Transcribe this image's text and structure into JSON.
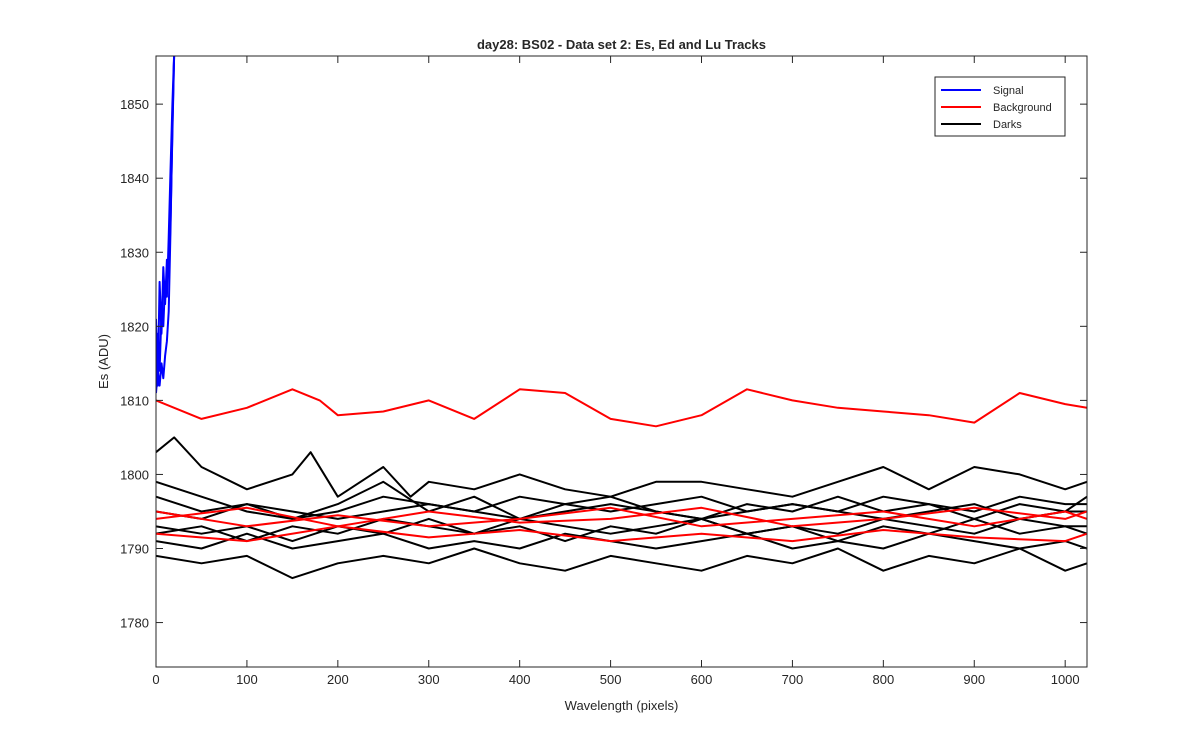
{
  "chart_data": {
    "type": "line",
    "title": "day28: BS02 - Data set 2: Es, Ed and Lu Tracks",
    "xlabel": "Wavelength (pixels)",
    "ylabel": "Es (ADU)",
    "xlim": [
      0,
      1024
    ],
    "ylim": [
      1774,
      1856.5
    ],
    "xticks": [
      0,
      100,
      200,
      300,
      400,
      500,
      600,
      700,
      800,
      900,
      1000
    ],
    "yticks": [
      1780,
      1790,
      1800,
      1810,
      1820,
      1830,
      1840,
      1850
    ],
    "grid": false,
    "legend_position": "top-right",
    "legend": [
      {
        "name": "Signal",
        "color": "#0000ff"
      },
      {
        "name": "Background",
        "color": "#ff0000"
      },
      {
        "name": "Darks",
        "color": "#000000"
      }
    ],
    "series": [
      {
        "name": "Signal",
        "color": "#0000ff",
        "x": [
          0,
          2,
          4,
          6,
          8,
          10,
          12,
          14,
          16,
          18,
          20
        ],
        "y": [
          1821,
          1812,
          1826,
          1819,
          1828,
          1823,
          1829,
          1827,
          1834,
          1846,
          1857
        ]
      },
      {
        "name": "Signal",
        "color": "#0000ff",
        "x": [
          0,
          2,
          4,
          6,
          8,
          10,
          12,
          14,
          16,
          18,
          20
        ],
        "y": [
          1812,
          1819,
          1814,
          1822,
          1820,
          1826,
          1824,
          1832,
          1841,
          1850,
          1857
        ]
      },
      {
        "name": "Signal",
        "color": "#0000ff",
        "x": [
          0,
          2,
          4,
          6,
          8,
          10,
          12,
          14,
          16,
          18,
          20
        ],
        "y": [
          1811,
          1814,
          1812,
          1815,
          1813,
          1816,
          1818,
          1822,
          1833,
          1847,
          1857
        ]
      },
      {
        "name": "Background",
        "color": "#ff0000",
        "x": [
          0,
          50,
          100,
          150,
          180,
          200,
          250,
          300,
          350,
          400,
          450,
          500,
          550,
          600,
          650,
          700,
          750,
          800,
          850,
          900,
          950,
          1000,
          1024
        ],
        "y": [
          1810,
          1807.5,
          1809,
          1811.5,
          1810,
          1808,
          1808.5,
          1810,
          1807.5,
          1811.5,
          1811,
          1807.5,
          1806.5,
          1808,
          1811.5,
          1810,
          1809,
          1808.5,
          1808,
          1807,
          1811,
          1809.5,
          1809
        ]
      },
      {
        "name": "Background",
        "color": "#ff0000",
        "x": [
          0,
          100,
          200,
          300,
          400,
          500,
          600,
          700,
          800,
          900,
          1000,
          1024
        ],
        "y": [
          1795,
          1793,
          1794.5,
          1793,
          1794,
          1795.5,
          1793,
          1794,
          1795,
          1793,
          1795,
          1794
        ]
      },
      {
        "name": "Background",
        "color": "#ff0000",
        "x": [
          0,
          100,
          200,
          300,
          400,
          500,
          600,
          700,
          800,
          900,
          1000,
          1024
        ],
        "y": [
          1792,
          1791,
          1793,
          1791.5,
          1792.5,
          1791,
          1792,
          1791,
          1792.5,
          1791.5,
          1791,
          1792
        ]
      },
      {
        "name": "Background",
        "color": "#ff0000",
        "x": [
          0,
          100,
          200,
          300,
          400,
          500,
          600,
          700,
          800,
          900,
          1000,
          1024
        ],
        "y": [
          1794,
          1795.5,
          1793,
          1795,
          1793.5,
          1794,
          1795.5,
          1793,
          1794,
          1795.5,
          1794,
          1795
        ]
      },
      {
        "name": "Darks",
        "color": "#000000",
        "x": [
          0,
          20,
          50,
          100,
          150,
          170,
          200,
          250,
          280,
          300,
          350,
          400,
          450,
          500,
          550,
          600,
          650,
          700,
          750,
          800,
          850,
          900,
          950,
          1000,
          1024
        ],
        "y": [
          1803,
          1805,
          1801,
          1798,
          1800,
          1803,
          1797,
          1801,
          1797,
          1799,
          1798,
          1800,
          1798,
          1797,
          1799,
          1799,
          1798,
          1797,
          1799,
          1801,
          1798,
          1801,
          1800,
          1798,
          1799
        ]
      },
      {
        "name": "Darks",
        "color": "#000000",
        "x": [
          0,
          50,
          100,
          150,
          200,
          250,
          300,
          350,
          400,
          450,
          500,
          550,
          600,
          650,
          700,
          750,
          800,
          850,
          900,
          950,
          1000,
          1024
        ],
        "y": [
          1799,
          1797,
          1795,
          1794,
          1796,
          1799,
          1795,
          1797,
          1794,
          1796,
          1797,
          1795,
          1794,
          1796,
          1795,
          1797,
          1795,
          1796,
          1794,
          1796,
          1795,
          1797
        ]
      },
      {
        "name": "Darks",
        "color": "#000000",
        "x": [
          0,
          50,
          100,
          150,
          200,
          250,
          300,
          350,
          400,
          450,
          500,
          550,
          600,
          650,
          700,
          750,
          800,
          850,
          900,
          950,
          1000,
          1024
        ],
        "y": [
          1795,
          1794,
          1796,
          1795,
          1794,
          1795,
          1796,
          1795,
          1794,
          1795,
          1796,
          1795,
          1794,
          1795,
          1796,
          1795,
          1794,
          1795,
          1796,
          1794,
          1795,
          1795
        ]
      },
      {
        "name": "Darks",
        "color": "#000000",
        "x": [
          0,
          50,
          100,
          150,
          200,
          250,
          300,
          350,
          400,
          450,
          500,
          550,
          600,
          650,
          700,
          750,
          800,
          850,
          900,
          950,
          1000,
          1024
        ],
        "y": [
          1793,
          1792,
          1793,
          1791,
          1793,
          1792,
          1794,
          1792,
          1793,
          1791,
          1793,
          1792,
          1794,
          1792,
          1793,
          1791,
          1793,
          1792,
          1794,
          1792,
          1793,
          1792
        ]
      },
      {
        "name": "Darks",
        "color": "#000000",
        "x": [
          0,
          50,
          100,
          150,
          200,
          250,
          300,
          350,
          400,
          450,
          500,
          550,
          600,
          650,
          700,
          750,
          800,
          850,
          900,
          950,
          1000,
          1024
        ],
        "y": [
          1791,
          1790,
          1792,
          1790,
          1791,
          1792,
          1790,
          1791,
          1790,
          1792,
          1791,
          1790,
          1791,
          1792,
          1790,
          1791,
          1790,
          1792,
          1791,
          1790,
          1791,
          1790
        ]
      },
      {
        "name": "Darks",
        "color": "#000000",
        "x": [
          0,
          50,
          100,
          150,
          200,
          250,
          300,
          350,
          400,
          450,
          500,
          550,
          600,
          650,
          700,
          750,
          800,
          850,
          900,
          950,
          1000,
          1024
        ],
        "y": [
          1789,
          1788,
          1789,
          1786,
          1788,
          1789,
          1788,
          1790,
          1788,
          1787,
          1789,
          1788,
          1787,
          1789,
          1788,
          1790,
          1787,
          1789,
          1788,
          1790,
          1787,
          1788
        ]
      },
      {
        "name": "Darks",
        "color": "#000000",
        "x": [
          0,
          50,
          100,
          150,
          200,
          250,
          300,
          350,
          400,
          450,
          500,
          550,
          600,
          650,
          700,
          750,
          800,
          850,
          900,
          950,
          1000,
          1024
        ],
        "y": [
          1797,
          1795,
          1796,
          1794,
          1795,
          1797,
          1796,
          1795,
          1797,
          1796,
          1795,
          1796,
          1797,
          1795,
          1796,
          1795,
          1797,
          1796,
          1795,
          1797,
          1796,
          1796
        ]
      },
      {
        "name": "Darks",
        "color": "#000000",
        "x": [
          0,
          50,
          100,
          150,
          200,
          250,
          300,
          350,
          400,
          450,
          500,
          550,
          600,
          650,
          700,
          750,
          800,
          850,
          900,
          950,
          1000,
          1024
        ],
        "y": [
          1792,
          1793,
          1791,
          1793,
          1792,
          1794,
          1793,
          1792,
          1794,
          1793,
          1792,
          1793,
          1794,
          1792,
          1793,
          1792,
          1794,
          1793,
          1792,
          1794,
          1793,
          1793
        ]
      }
    ]
  }
}
